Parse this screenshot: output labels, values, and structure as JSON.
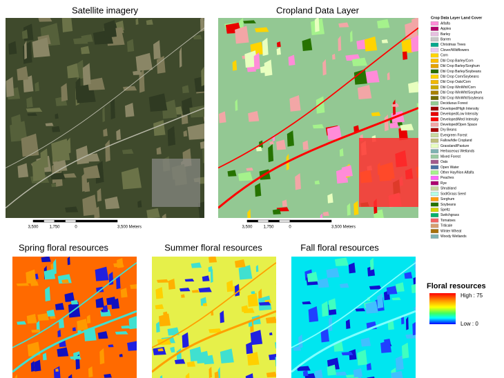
{
  "panels": {
    "satellite_title": "Satellite imagery",
    "cropland_title": "Cropland Data Layer",
    "spring_title": "Spring floral resources",
    "summer_title": "Summer floral resources",
    "fall_title": "Fall floral resources"
  },
  "scale_bar": {
    "labels": [
      "3,500",
      "1,750",
      "0",
      "3,500 Meters"
    ]
  },
  "crop_legend": {
    "title": "Crop Data Layer Land Cover",
    "items": [
      {
        "name": "Alfalfa",
        "color": "#ff8cd8"
      },
      {
        "name": "Apples",
        "color": "#b2006b"
      },
      {
        "name": "Barley",
        "color": "#e6bfe0"
      },
      {
        "name": "Barren",
        "color": "#c7c7c7"
      },
      {
        "name": "Christmas Trees",
        "color": "#00a88c"
      },
      {
        "name": "Clover/Wildflowers",
        "color": "#e6c8f0"
      },
      {
        "name": "Corn",
        "color": "#ffd400"
      },
      {
        "name": "Dbl Crop Barley/Corn",
        "color": "#ffbf00"
      },
      {
        "name": "Dbl Crop Barley/Sorghum",
        "color": "#e6a300"
      },
      {
        "name": "Dbl Crop Barley/Soybeans",
        "color": "#2a6e00"
      },
      {
        "name": "Dbl Crop Corn/Soybeans",
        "color": "#ffd400"
      },
      {
        "name": "Dbl Crop Oats/Corn",
        "color": "#f2b800"
      },
      {
        "name": "Dbl Crop WinWht/Corn",
        "color": "#c9a800"
      },
      {
        "name": "Dbl Crop WinWht/Sorghum",
        "color": "#a88000"
      },
      {
        "name": "Dbl Crop WinWht/Soybeans",
        "color": "#706b00"
      },
      {
        "name": "Deciduous Forest",
        "color": "#93cc93"
      },
      {
        "name": "Developed/High Intensity",
        "color": "#9c0000"
      },
      {
        "name": "Developed/Low Intensity",
        "color": "#e80000"
      },
      {
        "name": "Developed/Med Intensity",
        "color": "#ff0000"
      },
      {
        "name": "Developed/Open Space",
        "color": "#f2a6a6"
      },
      {
        "name": "Dry Beans",
        "color": "#a80000"
      },
      {
        "name": "Evergreen Forest",
        "color": "#c7d79e"
      },
      {
        "name": "Fallow/Idle Cropland",
        "color": "#bfbf7a"
      },
      {
        "name": "Grassland/Pasture",
        "color": "#e8ffbf"
      },
      {
        "name": "Herbaceous Wetlands",
        "color": "#7fb2b2"
      },
      {
        "name": "Mixed Forest",
        "color": "#98c9a0"
      },
      {
        "name": "Oats",
        "color": "#a3598c"
      },
      {
        "name": "Open Water",
        "color": "#4970a3"
      },
      {
        "name": "Other Hay/Non Alfalfa",
        "color": "#a5f28c"
      },
      {
        "name": "Peaches",
        "color": "#ff66ff"
      },
      {
        "name": "Rye",
        "color": "#ab006f"
      },
      {
        "name": "Shrubland",
        "color": "#c6d69c"
      },
      {
        "name": "Sod/Grass Seed",
        "color": "#b3ffe6"
      },
      {
        "name": "Sorghum",
        "color": "#ff9e0f"
      },
      {
        "name": "Soybeans",
        "color": "#267300"
      },
      {
        "name": "Speltz",
        "color": "#d6d600"
      },
      {
        "name": "Switchgrass",
        "color": "#00b36b"
      },
      {
        "name": "Tomatoes",
        "color": "#f26363"
      },
      {
        "name": "Triticale",
        "color": "#d69e70"
      },
      {
        "name": "Winter Wheat",
        "color": "#a8700a"
      },
      {
        "name": "Woody Wetlands",
        "color": "#80b2b2"
      }
    ]
  },
  "floral_legend": {
    "title": "Floral resources",
    "high_label": "High : 75",
    "low_label": "Low : 0"
  }
}
